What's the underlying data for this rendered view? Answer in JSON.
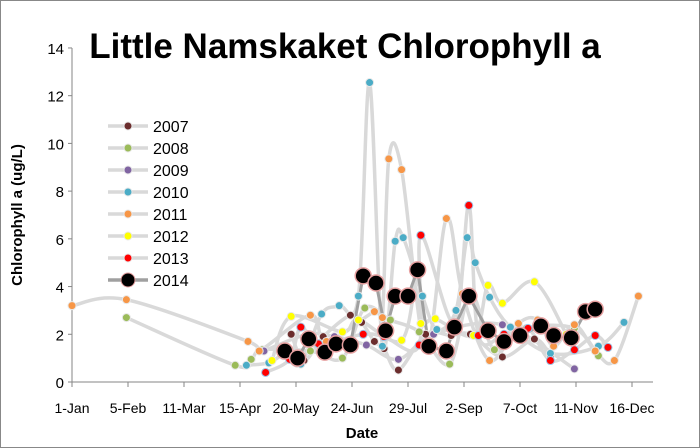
{
  "chart_data": {
    "type": "line",
    "title": "Little Namskaket Chlorophyll a",
    "xlabel": "Date",
    "ylabel": "Chlorophyll a (ug/L)",
    "ylim": [
      0,
      14
    ],
    "yticks": [
      0,
      2,
      4,
      6,
      8,
      10,
      12,
      14
    ],
    "x_unit": "day of year",
    "xlim": [
      1,
      351
    ],
    "xticks": [
      {
        "day": 1,
        "label": "1-Jan"
      },
      {
        "day": 36,
        "label": "5-Feb"
      },
      {
        "day": 71,
        "label": "11-Mar"
      },
      {
        "day": 106,
        "label": "15-Apr"
      },
      {
        "day": 141,
        "label": "20-May"
      },
      {
        "day": 176,
        "label": "24-Jun"
      },
      {
        "day": 211,
        "label": "29-Jul"
      },
      {
        "day": 246,
        "label": "2-Sep"
      },
      {
        "day": 281,
        "label": "7-Oct"
      },
      {
        "day": 316,
        "label": "11-Nov"
      },
      {
        "day": 351,
        "label": "16-Dec"
      }
    ],
    "grid": false,
    "legend_position": "left",
    "series": [
      {
        "name": "2007",
        "color": "#6B2D2D",
        "points": [
          [
            138,
            2.0
          ],
          [
            146,
            0.9
          ],
          [
            158,
            1.9
          ],
          [
            175,
            2.8
          ],
          [
            182,
            2.5
          ],
          [
            190,
            1.7
          ],
          [
            196,
            1.4
          ],
          [
            205,
            0.5
          ],
          [
            222,
            2.0
          ],
          [
            238,
            1.95
          ],
          [
            250,
            2.0
          ],
          [
            270,
            1.05
          ],
          [
            290,
            1.8
          ],
          [
            300,
            1.1
          ]
        ]
      },
      {
        "name": "2008",
        "color": "#9BBB59",
        "points": [
          [
            35,
            2.7
          ],
          [
            103,
            0.7
          ],
          [
            113,
            0.95
          ],
          [
            120,
            1.35
          ],
          [
            150,
            1.3
          ],
          [
            170,
            1.0
          ],
          [
            184,
            3.1
          ],
          [
            200,
            2.6
          ],
          [
            218,
            2.1
          ],
          [
            237,
            0.75
          ],
          [
            250,
            3.7
          ],
          [
            265,
            1.35
          ],
          [
            285,
            2.25
          ],
          [
            315,
            2.25
          ],
          [
            330,
            1.1
          ]
        ]
      },
      {
        "name": "2009",
        "color": "#8064A2",
        "points": [
          [
            121,
            1.3
          ],
          [
            148,
            2.0
          ],
          [
            165,
            1.9
          ],
          [
            185,
            1.55
          ],
          [
            205,
            0.95
          ],
          [
            227,
            2.0
          ],
          [
            270,
            2.4
          ],
          [
            315,
            0.55
          ]
        ]
      },
      {
        "name": "2010",
        "color": "#4BACC6",
        "points": [
          [
            110,
            0.7
          ],
          [
            124,
            0.8
          ],
          [
            133,
            1.1
          ],
          [
            144,
            0.75
          ],
          [
            157,
            2.85
          ],
          [
            168,
            3.2
          ],
          [
            180,
            3.6
          ],
          [
            187,
            12.55
          ],
          [
            195,
            1.5
          ],
          [
            203,
            5.9
          ],
          [
            208,
            6.05
          ],
          [
            220,
            3.6
          ],
          [
            229,
            2.2
          ],
          [
            241,
            3.0
          ],
          [
            248,
            6.05
          ],
          [
            253,
            5.0
          ],
          [
            262,
            3.55
          ],
          [
            275,
            2.3
          ],
          [
            300,
            1.2
          ],
          [
            330,
            1.5
          ],
          [
            346,
            2.5
          ]
        ]
      },
      {
        "name": "2011",
        "color": "#F79646",
        "points": [
          [
            1,
            3.2
          ],
          [
            35,
            3.45
          ],
          [
            111,
            1.7
          ],
          [
            118,
            1.3
          ],
          [
            150,
            2.8
          ],
          [
            160,
            1.7
          ],
          [
            190,
            2.95
          ],
          [
            195,
            2.7
          ],
          [
            199,
            9.35
          ],
          [
            207,
            8.9
          ],
          [
            222,
            1.4
          ],
          [
            235,
            6.85
          ],
          [
            245,
            3.7
          ],
          [
            262,
            0.9
          ],
          [
            280,
            2.45
          ],
          [
            292,
            2.6
          ],
          [
            302,
            1.5
          ],
          [
            315,
            2.4
          ],
          [
            328,
            1.3
          ],
          [
            340,
            0.9
          ],
          [
            355,
            3.6
          ]
        ]
      },
      {
        "name": "2012",
        "color": "#FFFF00",
        "points": [
          [
            126,
            0.9
          ],
          [
            138,
            2.75
          ],
          [
            170,
            2.1
          ],
          [
            180,
            2.6
          ],
          [
            207,
            1.75
          ],
          [
            217,
            4.7
          ],
          [
            219,
            2.45
          ],
          [
            228,
            2.65
          ],
          [
            252,
            1.95
          ],
          [
            261,
            4.05
          ],
          [
            270,
            3.3
          ],
          [
            290,
            4.2
          ],
          [
            310,
            2.0
          ]
        ]
      },
      {
        "name": "2013",
        "color": "#FF0000",
        "points": [
          [
            122,
            0.4
          ],
          [
            137,
            0.95
          ],
          [
            144,
            2.3
          ],
          [
            155,
            1.6
          ],
          [
            183,
            2.0
          ],
          [
            196,
            1.9
          ],
          [
            218,
            1.55
          ],
          [
            219,
            6.15
          ],
          [
            240,
            2.45
          ],
          [
            249,
            7.4
          ],
          [
            255,
            1.95
          ],
          [
            271,
            2.0
          ],
          [
            286,
            2.25
          ],
          [
            300,
            0.9
          ],
          [
            315,
            1.35
          ],
          [
            328,
            1.95
          ],
          [
            336,
            1.45
          ]
        ]
      },
      {
        "name": "2014",
        "color": "#000000",
        "points": [
          [
            134,
            1.3
          ],
          [
            142,
            1.0
          ],
          [
            149,
            1.8
          ],
          [
            159,
            1.25
          ],
          [
            166,
            1.6
          ],
          [
            175,
            1.55
          ],
          [
            183,
            4.45
          ],
          [
            191,
            4.15
          ],
          [
            197,
            2.15
          ],
          [
            203,
            3.6
          ],
          [
            211,
            3.6
          ],
          [
            217,
            4.7
          ],
          [
            224,
            1.5
          ],
          [
            235,
            1.3
          ],
          [
            240,
            2.3
          ],
          [
            249,
            3.6
          ],
          [
            261,
            2.15
          ],
          [
            271,
            1.7
          ],
          [
            281,
            1.95
          ],
          [
            294,
            2.35
          ],
          [
            302,
            1.95
          ],
          [
            313,
            1.85
          ],
          [
            322,
            2.95
          ],
          [
            328,
            3.05
          ]
        ]
      }
    ]
  }
}
